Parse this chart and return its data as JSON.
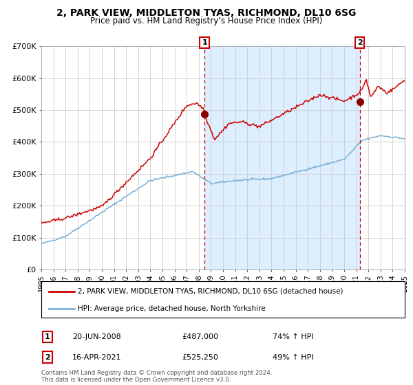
{
  "title": "2, PARK VIEW, MIDDLETON TYAS, RICHMOND, DL10 6SG",
  "subtitle": "Price paid vs. HM Land Registry’s House Price Index (HPI)",
  "legend_line1": "2, PARK VIEW, MIDDLETON TYAS, RICHMOND, DL10 6SG (detached house)",
  "legend_line2": "HPI: Average price, detached house, North Yorkshire",
  "transaction1_date": "20-JUN-2008",
  "transaction1_price": 487000,
  "transaction1_label": "74% ↑ HPI",
  "transaction2_date": "16-APR-2021",
  "transaction2_price": 525250,
  "transaction2_label": "49% ↑ HPI",
  "footer": "Contains HM Land Registry data © Crown copyright and database right 2024.\nThis data is licensed under the Open Government Licence v3.0.",
  "red_color": "#cc0000",
  "blue_color": "#7aafd4",
  "shading_color": "#ddeeff",
  "background_color": "#ffffff",
  "grid_color": "#cccccc",
  "ylim": [
    0,
    700000
  ],
  "yticks": [
    0,
    100000,
    200000,
    300000,
    400000,
    500000,
    600000,
    700000
  ],
  "transaction1_x": 2008.47,
  "transaction2_x": 2021.29
}
